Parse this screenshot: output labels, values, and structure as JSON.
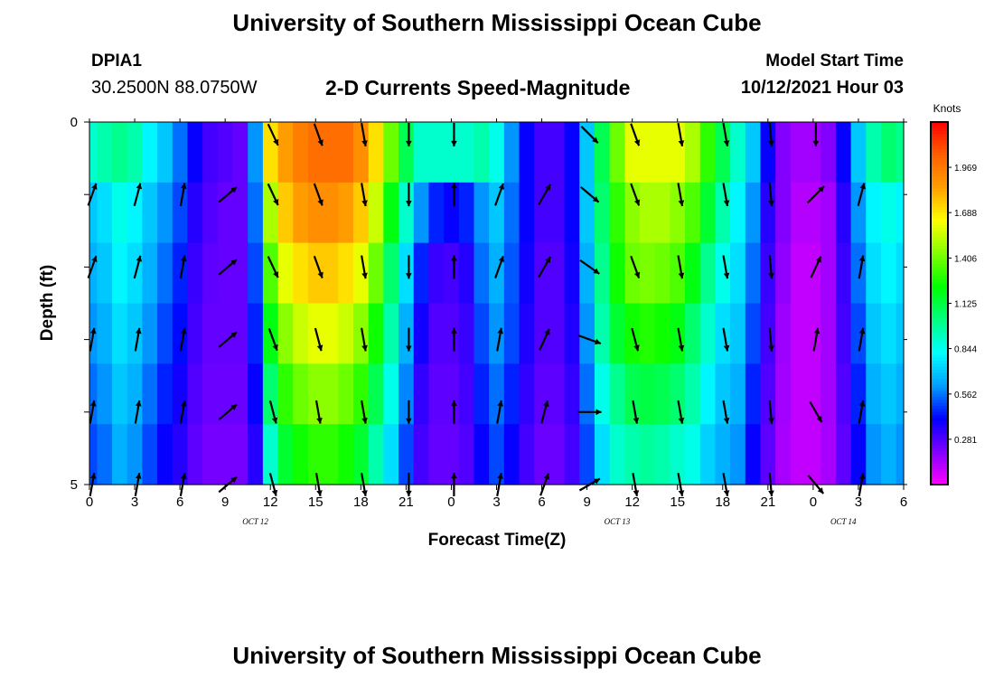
{
  "header": {
    "title": "University of Southern Mississippi Ocean Cube",
    "station_id": "DPIA1",
    "station_coords": "30.2500N  88.0750W",
    "plot_title": "2-D Currents Speed-Magnitude",
    "model_label": "Model Start Time",
    "model_time": "10/12/2021 Hour 03"
  },
  "footer": {
    "title": "University of Southern Mississippi Ocean Cube"
  },
  "chart_data": {
    "type": "heatmap",
    "title": "2-D Currents Speed-Magnitude",
    "xlabel": "Forecast Time(Z)",
    "ylabel": "Depth (ft)",
    "x_range": [
      0,
      54
    ],
    "x_tick_labels": [
      "0",
      "3",
      "6",
      "9",
      "12",
      "15",
      "18",
      "21",
      "0",
      "3",
      "6",
      "9",
      "12",
      "15",
      "18",
      "21",
      "0",
      "3",
      "6"
    ],
    "date_labels": [
      {
        "label": "OCT 12",
        "hour": 11
      },
      {
        "label": "OCT 13",
        "hour": 35
      },
      {
        "label": "OCT 14",
        "hour": 50
      }
    ],
    "y_range": [
      0,
      5
    ],
    "y_tick_labels": [
      "0",
      "5"
    ],
    "depth_levels": [
      0,
      1,
      2,
      3,
      4,
      5
    ],
    "colorbar": {
      "label": "Knots",
      "ticks": [
        "1.969",
        "1.688",
        "1.406",
        "1.125",
        "0.844",
        "0.562",
        "0.281"
      ],
      "range": [
        0,
        2.25
      ],
      "colors": [
        "#ff00ff",
        "#8000ff",
        "#0000ff",
        "#00a0ff",
        "#00ffff",
        "#00ff80",
        "#00ff00",
        "#80ff00",
        "#ffff00",
        "#ffa000",
        "#ff6000",
        "#ff0000"
      ]
    },
    "times": [
      0,
      1,
      2,
      3,
      4,
      5,
      6,
      7,
      8,
      9,
      10,
      11,
      12,
      13,
      14,
      15,
      16,
      17,
      18,
      19,
      20,
      21,
      22,
      23,
      24,
      25,
      26,
      27,
      28,
      29,
      30,
      31,
      32,
      33,
      34,
      35,
      36,
      37,
      38,
      39,
      40,
      41,
      42,
      43,
      44,
      45,
      46,
      47,
      48,
      49,
      50,
      51,
      52,
      53,
      54
    ],
    "speed_knots": [
      [
        0.9,
        0.95,
        1.0,
        0.95,
        0.8,
        0.7,
        0.55,
        0.4,
        0.3,
        0.28,
        0.25,
        0.6,
        1.7,
        1.85,
        1.95,
        2.0,
        2.0,
        2.0,
        1.9,
        1.7,
        1.4,
        1.1,
        0.9,
        0.9,
        0.9,
        0.9,
        0.95,
        0.85,
        0.6,
        0.4,
        0.3,
        0.3,
        0.4,
        0.7,
        1.1,
        1.4,
        1.6,
        1.6,
        1.6,
        1.6,
        1.5,
        1.3,
        1.1,
        0.9,
        0.7,
        0.4,
        0.2,
        0.15,
        0.15,
        0.2,
        0.4,
        0.7,
        0.95,
        1.05,
        1.0
      ],
      [
        0.7,
        0.75,
        0.85,
        0.8,
        0.7,
        0.6,
        0.5,
        0.35,
        0.28,
        0.25,
        0.25,
        0.55,
        1.5,
        1.75,
        1.85,
        1.9,
        1.9,
        1.85,
        1.75,
        1.55,
        1.2,
        0.9,
        0.6,
        0.45,
        0.4,
        0.45,
        0.6,
        0.7,
        0.55,
        0.4,
        0.3,
        0.3,
        0.4,
        0.7,
        1.05,
        1.3,
        1.45,
        1.5,
        1.5,
        1.45,
        1.35,
        1.15,
        0.95,
        0.8,
        0.6,
        0.35,
        0.2,
        0.12,
        0.12,
        0.15,
        0.35,
        0.6,
        0.8,
        0.85,
        0.8
      ],
      [
        0.65,
        0.7,
        0.8,
        0.75,
        0.65,
        0.55,
        0.45,
        0.32,
        0.26,
        0.25,
        0.25,
        0.5,
        1.35,
        1.6,
        1.7,
        1.75,
        1.75,
        1.7,
        1.6,
        1.4,
        1.05,
        0.75,
        0.45,
        0.32,
        0.3,
        0.35,
        0.55,
        0.65,
        0.52,
        0.38,
        0.28,
        0.28,
        0.38,
        0.65,
        1.0,
        1.25,
        1.4,
        1.42,
        1.4,
        1.35,
        1.2,
        1.0,
        0.85,
        0.75,
        0.55,
        0.32,
        0.18,
        0.1,
        0.1,
        0.15,
        0.32,
        0.55,
        0.75,
        0.8,
        0.75
      ],
      [
        0.6,
        0.65,
        0.75,
        0.7,
        0.6,
        0.5,
        0.42,
        0.3,
        0.25,
        0.25,
        0.25,
        0.45,
        1.2,
        1.45,
        1.55,
        1.6,
        1.6,
        1.55,
        1.45,
        1.25,
        0.95,
        0.65,
        0.38,
        0.28,
        0.28,
        0.32,
        0.5,
        0.6,
        0.5,
        0.36,
        0.28,
        0.28,
        0.36,
        0.6,
        0.95,
        1.15,
        1.25,
        1.28,
        1.25,
        1.2,
        1.05,
        0.9,
        0.75,
        0.7,
        0.5,
        0.3,
        0.16,
        0.1,
        0.1,
        0.15,
        0.3,
        0.5,
        0.7,
        0.75,
        0.7
      ],
      [
        0.55,
        0.6,
        0.7,
        0.65,
        0.55,
        0.45,
        0.38,
        0.28,
        0.24,
        0.24,
        0.24,
        0.4,
        1.05,
        1.3,
        1.4,
        1.45,
        1.45,
        1.4,
        1.3,
        1.1,
        0.85,
        0.58,
        0.33,
        0.26,
        0.26,
        0.3,
        0.45,
        0.55,
        0.45,
        0.33,
        0.26,
        0.26,
        0.33,
        0.55,
        0.85,
        1.0,
        1.1,
        1.12,
        1.1,
        1.05,
        0.95,
        0.8,
        0.7,
        0.65,
        0.45,
        0.28,
        0.15,
        0.1,
        0.1,
        0.15,
        0.28,
        0.45,
        0.65,
        0.7,
        0.65
      ],
      [
        0.5,
        0.55,
        0.65,
        0.6,
        0.5,
        0.4,
        0.35,
        0.26,
        0.22,
        0.22,
        0.22,
        0.35,
        0.9,
        1.15,
        1.25,
        1.3,
        1.3,
        1.25,
        1.15,
        0.95,
        0.75,
        0.5,
        0.3,
        0.25,
        0.25,
        0.28,
        0.4,
        0.5,
        0.4,
        0.3,
        0.24,
        0.24,
        0.3,
        0.5,
        0.75,
        0.9,
        0.95,
        0.98,
        0.95,
        0.9,
        0.85,
        0.72,
        0.65,
        0.6,
        0.4,
        0.26,
        0.14,
        0.1,
        0.1,
        0.14,
        0.26,
        0.4,
        0.6,
        0.65,
        0.6
      ]
    ],
    "arrow_times": [
      0,
      3,
      6,
      9,
      12,
      15,
      18,
      21,
      24,
      27,
      30,
      33,
      36,
      39,
      42,
      45,
      48,
      51
    ],
    "arrow_depths": [
      0,
      1,
      2,
      3,
      4,
      5
    ],
    "arrow_directions_deg": [
      [
        null,
        null,
        null,
        null,
        155,
        160,
        170,
        180,
        180,
        null,
        null,
        135,
        160,
        170,
        170,
        175,
        180,
        null
      ],
      [
        20,
        15,
        10,
        50,
        155,
        160,
        170,
        180,
        0,
        20,
        30,
        130,
        160,
        170,
        170,
        175,
        45,
        15
      ],
      [
        20,
        15,
        10,
        50,
        155,
        160,
        170,
        180,
        0,
        20,
        30,
        125,
        160,
        170,
        170,
        175,
        25,
        10
      ],
      [
        10,
        10,
        10,
        50,
        160,
        165,
        170,
        180,
        0,
        10,
        25,
        110,
        165,
        170,
        170,
        175,
        10,
        10
      ],
      [
        10,
        10,
        10,
        50,
        165,
        170,
        170,
        180,
        0,
        10,
        15,
        90,
        170,
        170,
        170,
        175,
        150,
        10
      ],
      [
        10,
        10,
        10,
        50,
        165,
        170,
        170,
        180,
        0,
        10,
        20,
        60,
        170,
        170,
        170,
        175,
        140,
        10
      ]
    ]
  }
}
